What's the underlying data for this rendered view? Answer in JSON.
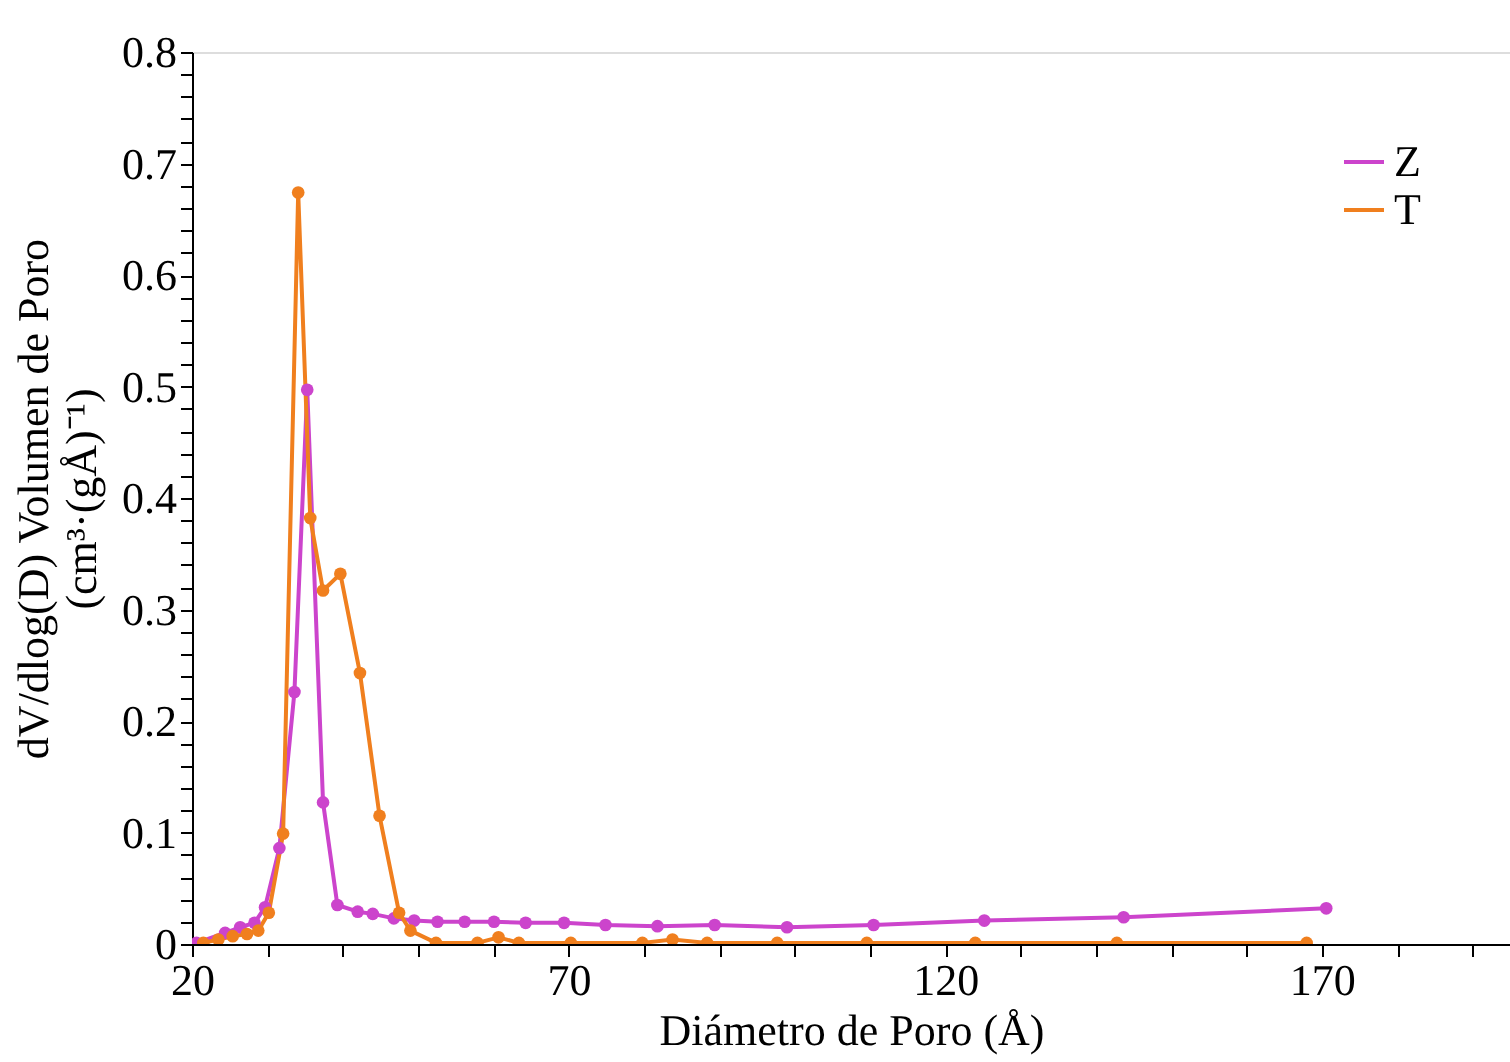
{
  "chart_data": {
    "type": "line",
    "xlabel": "Diámetro de Poro (Å)",
    "ylabel": "dV/dlog(D) Volumen de Poro\n(cm³·(gÅ)⁻¹)",
    "xlim": [
      20,
      195
    ],
    "ylim": [
      0,
      0.8
    ],
    "xticks": [
      20,
      {
        "value": 30,
        "label": null
      },
      {
        "value": 40,
        "label": null
      },
      {
        "value": 50,
        "label": null
      },
      {
        "value": 60,
        "label": null
      },
      70,
      {
        "value": 80,
        "label": null
      },
      {
        "value": 90,
        "label": null
      },
      {
        "value": 100,
        "label": null
      },
      {
        "value": 110,
        "label": null
      },
      120,
      {
        "value": 130,
        "label": null
      },
      {
        "value": 140,
        "label": null
      },
      {
        "value": 150,
        "label": null
      },
      {
        "value": 160,
        "label": null
      },
      170,
      {
        "value": 180,
        "label": null
      },
      {
        "value": 190,
        "label": null
      }
    ],
    "yticks": [
      0,
      {
        "value": 0.02,
        "label": null
      },
      {
        "value": 0.04,
        "label": null
      },
      {
        "value": 0.06,
        "label": null
      },
      {
        "value": 0.08,
        "label": null
      },
      0.1,
      {
        "value": 0.12,
        "label": null
      },
      {
        "value": 0.14,
        "label": null
      },
      {
        "value": 0.16,
        "label": null
      },
      {
        "value": 0.18,
        "label": null
      },
      0.2,
      {
        "value": 0.22,
        "label": null
      },
      {
        "value": 0.24,
        "label": null
      },
      {
        "value": 0.26,
        "label": null
      },
      {
        "value": 0.28,
        "label": null
      },
      0.3,
      {
        "value": 0.32,
        "label": null
      },
      {
        "value": 0.34,
        "label": null
      },
      {
        "value": 0.36,
        "label": null
      },
      {
        "value": 0.38,
        "label": null
      },
      0.4,
      {
        "value": 0.42,
        "label": null
      },
      {
        "value": 0.44,
        "label": null
      },
      {
        "value": 0.46,
        "label": null
      },
      {
        "value": 0.48,
        "label": null
      },
      0.5,
      {
        "value": 0.52,
        "label": null
      },
      {
        "value": 0.54,
        "label": null
      },
      {
        "value": 0.56,
        "label": null
      },
      {
        "value": 0.58,
        "label": null
      },
      0.6,
      {
        "value": 0.62,
        "label": null
      },
      {
        "value": 0.64,
        "label": null
      },
      {
        "value": 0.66,
        "label": null
      },
      {
        "value": 0.68,
        "label": null
      },
      0.7,
      {
        "value": 0.72,
        "label": null
      },
      {
        "value": 0.74,
        "label": null
      },
      {
        "value": 0.76,
        "label": null
      },
      {
        "value": 0.78,
        "label": null
      },
      0.8
    ],
    "grid": false,
    "legend": "top right",
    "marker": "circle",
    "line_style": "solid",
    "series": [
      {
        "name": "Z",
        "color": "#cc44cc",
        "x": [
          20.6,
          24.4,
          26.4,
          28.3,
          29.7,
          31.6,
          33.6,
          35.3,
          37.4,
          39.3,
          42.0,
          44.0,
          46.8,
          49.5,
          52.6,
          56.2,
          60.1,
          64.3,
          69.4,
          74.9,
          81.8,
          89.4,
          99.0,
          110.5,
          125.2,
          143.7,
          170.6
        ],
        "values": [
          0.001,
          0.01,
          0.015,
          0.019,
          0.033,
          0.086,
          0.226,
          0.497,
          0.127,
          0.035,
          0.029,
          0.027,
          0.023,
          0.021,
          0.02,
          0.02,
          0.02,
          0.019,
          0.019,
          0.017,
          0.016,
          0.017,
          0.015,
          0.017,
          0.021,
          0.024,
          0.032
        ]
      },
      {
        "name": "T",
        "color": "#f07f1e",
        "x": [
          21.5,
          23.5,
          25.4,
          27.3,
          28.8,
          30.2,
          32.1,
          34.1,
          35.7,
          37.4,
          39.7,
          42.3,
          44.9,
          47.5,
          49.0,
          52.4,
          57.9,
          60.7,
          63.4,
          70.3,
          79.8,
          83.8,
          88.4,
          97.7,
          109.6,
          124.0,
          142.8,
          168.0
        ],
        "values": [
          0.001,
          0.004,
          0.007,
          0.009,
          0.012,
          0.028,
          0.099,
          0.674,
          0.382,
          0.317,
          0.332,
          0.243,
          0.115,
          0.028,
          0.012,
          0.001,
          0.001,
          0.006,
          0.001,
          0.001,
          0.001,
          0.004,
          0.001,
          0.001,
          0.001,
          0.001,
          0.001,
          0.001
        ]
      }
    ]
  }
}
